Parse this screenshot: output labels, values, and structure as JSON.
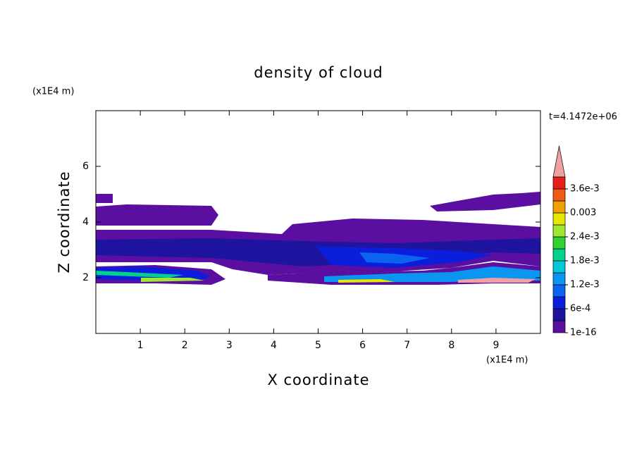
{
  "chart_data": {
    "type": "contour",
    "title": "density of cloud",
    "x_label": "X coordinate",
    "y_label": "Z coordinate",
    "x_unit": "(x1E4 m)",
    "y_unit": "(x1E4 m)",
    "annotation": "t=4.1472e+06",
    "xlim": [
      0,
      10
    ],
    "xticks": [
      1,
      2,
      3,
      4,
      5,
      6,
      7,
      8,
      9
    ],
    "ylim": [
      0,
      8
    ],
    "yticks": [
      2,
      4,
      6
    ],
    "colorbar": {
      "levels": [
        1e-16,
        0.0003,
        0.0006,
        0.0009,
        0.0012,
        0.0015,
        0.0018,
        0.0021,
        0.0024,
        0.0027,
        0.003,
        0.0033,
        0.0036,
        0.0039
      ],
      "colors": [
        "#5a0fa0",
        "#1e14a0",
        "#0a1edc",
        "#0a64f0",
        "#0a96f0",
        "#00c8dc",
        "#00d28c",
        "#32d232",
        "#a0e632",
        "#e6e600",
        "#f0a000",
        "#f05a14",
        "#e61e1e"
      ],
      "extend_color": "#f0a0a0",
      "ticks": [
        {
          "value": 1e-16,
          "label": "1e-16"
        },
        {
          "value": 0.0006,
          "label": "6e-4"
        },
        {
          "value": 0.0012,
          "label": "1.2e-3"
        },
        {
          "value": 0.0018,
          "label": "1.8e-3"
        },
        {
          "value": 0.0024,
          "label": "2.4e-3"
        },
        0.003,
        {
          "value": 0.0036,
          "label": "3.6e-3"
        }
      ]
    }
  }
}
